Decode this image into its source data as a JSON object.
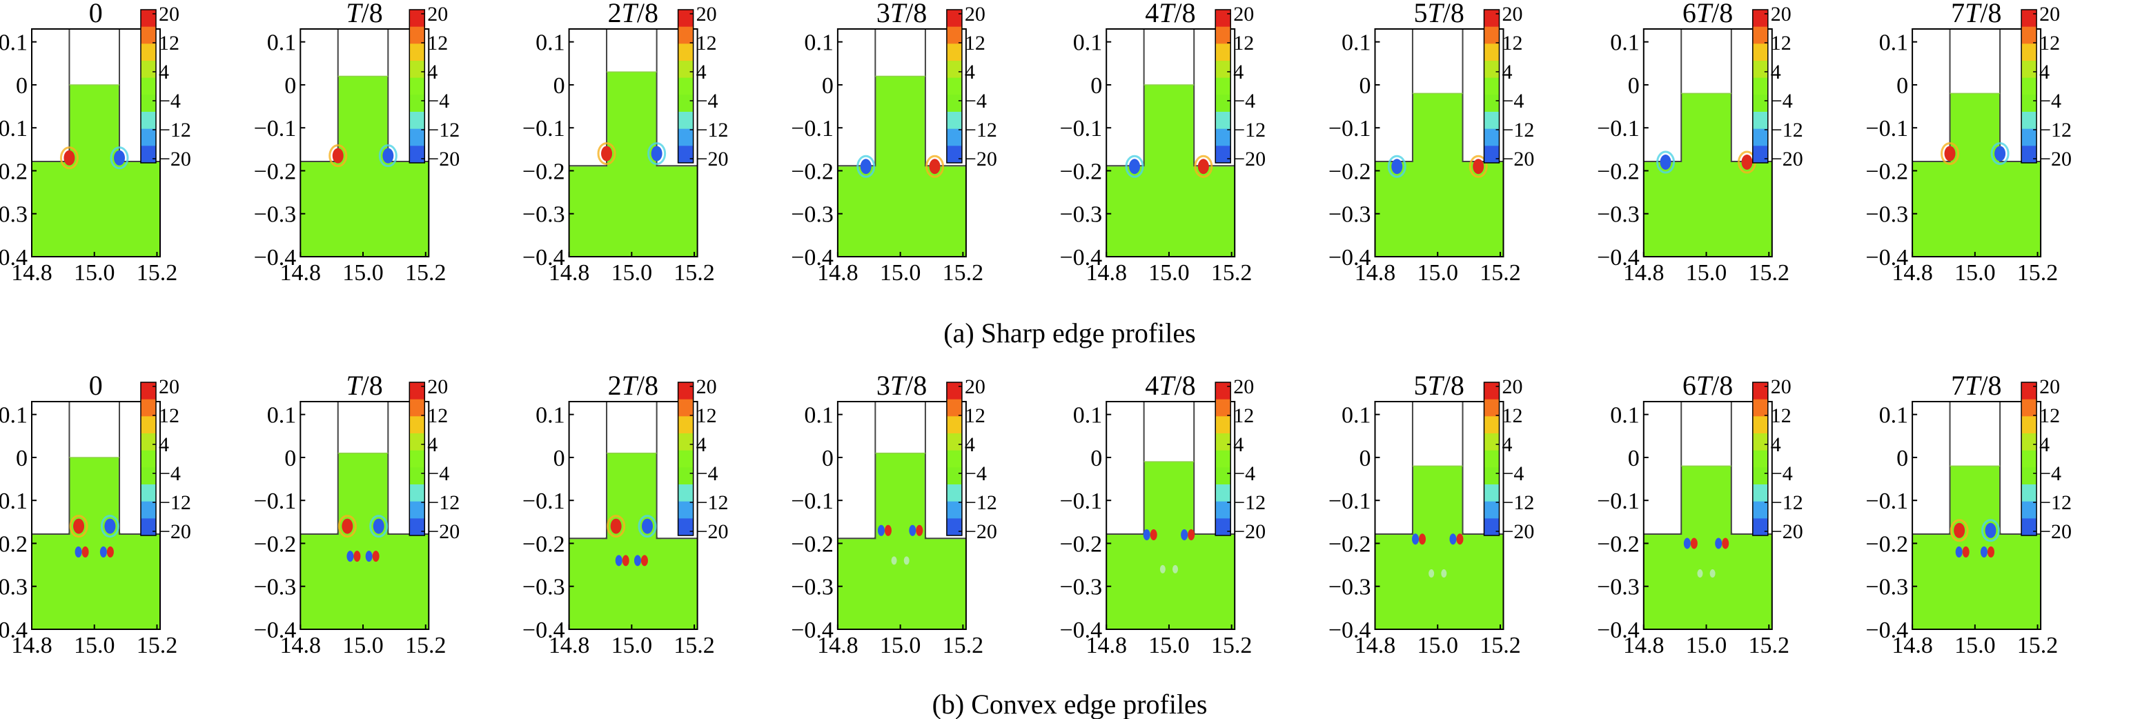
{
  "frame_titles": [
    "0",
    "T/8",
    "2T/8",
    "3T/8",
    "4T/8",
    "5T/8",
    "6T/8",
    "7T/8"
  ],
  "x_ticks": [
    "14.8",
    "15.0",
    "15.2"
  ],
  "y_ticks": [
    "0.1",
    "0",
    "−0.1",
    "−0.2",
    "−0.3",
    "−0.4"
  ],
  "colorbar_ticks": [
    "20",
    "12",
    "4",
    "−4",
    "−12",
    "−20"
  ],
  "colorbar_colors": [
    "#e3241c",
    "#f5751f",
    "#f4c61c",
    "#b8e81f",
    "#86f51e",
    "#7ef21f",
    "#6de7d0",
    "#3ea3f0",
    "#2d5ce6"
  ],
  "background_color": "#7ff21e",
  "rows": [
    {
      "caption": "(a) Sharp edge profiles",
      "profile": "sharp",
      "frames": [
        {
          "neck_top": 0.0,
          "floor": -0.18,
          "marks": [
            [
              14.92,
              -0.17,
              "red"
            ],
            [
              15.08,
              -0.17,
              "blue"
            ]
          ]
        },
        {
          "neck_top": 0.02,
          "floor": -0.18,
          "marks": [
            [
              14.92,
              -0.165,
              "red"
            ],
            [
              15.08,
              -0.165,
              "blue"
            ]
          ]
        },
        {
          "neck_top": 0.03,
          "floor": -0.19,
          "marks": [
            [
              14.92,
              -0.16,
              "red"
            ],
            [
              15.08,
              -0.16,
              "blue"
            ]
          ]
        },
        {
          "neck_top": 0.02,
          "floor": -0.19,
          "marks": [
            [
              14.89,
              -0.19,
              "blue"
            ],
            [
              15.11,
              -0.19,
              "red"
            ]
          ]
        },
        {
          "neck_top": 0.0,
          "floor": -0.19,
          "marks": [
            [
              14.89,
              -0.19,
              "blue"
            ],
            [
              15.11,
              -0.19,
              "red"
            ]
          ]
        },
        {
          "neck_top": -0.02,
          "floor": -0.18,
          "marks": [
            [
              14.87,
              -0.19,
              "blue"
            ],
            [
              15.13,
              -0.19,
              "red"
            ]
          ]
        },
        {
          "neck_top": -0.02,
          "floor": -0.18,
          "marks": [
            [
              14.87,
              -0.18,
              "blue"
            ],
            [
              15.13,
              -0.18,
              "red"
            ]
          ]
        },
        {
          "neck_top": -0.02,
          "floor": -0.18,
          "marks": [
            [
              14.92,
              -0.16,
              "red"
            ],
            [
              15.08,
              -0.16,
              "blue"
            ]
          ]
        }
      ]
    },
    {
      "caption": "(b) Convex edge profiles",
      "profile": "convex",
      "frames": [
        {
          "neck_top": 0.0,
          "floor": -0.18,
          "marks": [
            [
              14.95,
              -0.16,
              "red"
            ],
            [
              15.05,
              -0.16,
              "blue"
            ],
            [
              14.96,
              -0.22,
              "pair"
            ],
            [
              15.04,
              -0.22,
              "pair"
            ]
          ]
        },
        {
          "neck_top": 0.01,
          "floor": -0.18,
          "marks": [
            [
              14.95,
              -0.16,
              "red"
            ],
            [
              15.05,
              -0.16,
              "blue"
            ],
            [
              14.97,
              -0.23,
              "pair"
            ],
            [
              15.03,
              -0.23,
              "pair"
            ]
          ]
        },
        {
          "neck_top": 0.01,
          "floor": -0.19,
          "marks": [
            [
              14.95,
              -0.16,
              "red"
            ],
            [
              15.05,
              -0.16,
              "blue"
            ],
            [
              14.97,
              -0.24,
              "pair"
            ],
            [
              15.03,
              -0.24,
              "pair"
            ]
          ]
        },
        {
          "neck_top": 0.01,
          "floor": -0.19,
          "marks": [
            [
              14.95,
              -0.17,
              "pair"
            ],
            [
              15.05,
              -0.17,
              "pair"
            ],
            [
              14.98,
              -0.24,
              "faint"
            ],
            [
              15.02,
              -0.24,
              "faint"
            ]
          ]
        },
        {
          "neck_top": -0.01,
          "floor": -0.18,
          "marks": [
            [
              14.94,
              -0.18,
              "pair"
            ],
            [
              15.06,
              -0.18,
              "pair"
            ],
            [
              14.98,
              -0.26,
              "faint"
            ],
            [
              15.02,
              -0.26,
              "faint"
            ]
          ]
        },
        {
          "neck_top": -0.02,
          "floor": -0.18,
          "marks": [
            [
              14.94,
              -0.19,
              "pair"
            ],
            [
              15.06,
              -0.19,
              "pair"
            ],
            [
              14.98,
              -0.27,
              "faint"
            ],
            [
              15.02,
              -0.27,
              "faint"
            ]
          ]
        },
        {
          "neck_top": -0.02,
          "floor": -0.18,
          "marks": [
            [
              14.95,
              -0.2,
              "pair"
            ],
            [
              15.05,
              -0.2,
              "pair"
            ],
            [
              14.98,
              -0.27,
              "faint"
            ],
            [
              15.02,
              -0.27,
              "faint"
            ]
          ]
        },
        {
          "neck_top": -0.02,
          "floor": -0.18,
          "marks": [
            [
              14.95,
              -0.17,
              "red"
            ],
            [
              15.05,
              -0.17,
              "blue"
            ],
            [
              14.96,
              -0.22,
              "pair"
            ],
            [
              15.04,
              -0.22,
              "pair"
            ]
          ]
        }
      ]
    }
  ]
}
